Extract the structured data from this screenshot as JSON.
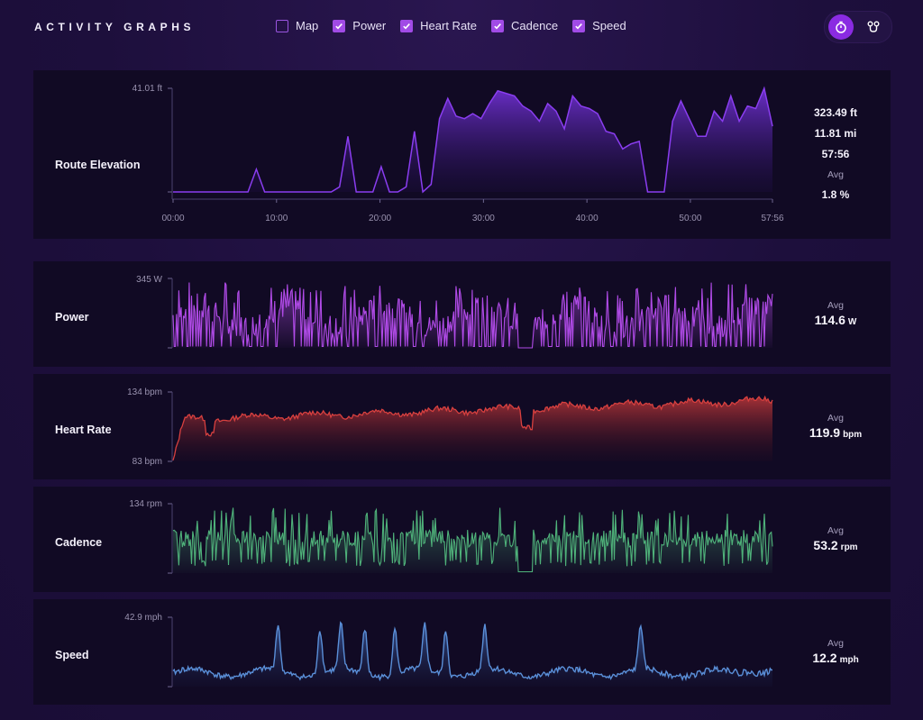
{
  "app": {
    "title": "ACTIVITY GRAPHS"
  },
  "toggles": [
    {
      "label": "Map",
      "checked": false
    },
    {
      "label": "Power",
      "checked": true
    },
    {
      "label": "Heart Rate",
      "checked": true
    },
    {
      "label": "Cadence",
      "checked": true
    },
    {
      "label": "Speed",
      "checked": true
    }
  ],
  "mode_buttons": [
    {
      "icon": "stopwatch-icon",
      "active": true
    },
    {
      "icon": "route-pins-icon",
      "active": false
    }
  ],
  "elevation": {
    "label": "Route Elevation",
    "y_max_label": "41.01 ft",
    "x_ticks": [
      "00:00",
      "10:00",
      "20:00",
      "30:00",
      "40:00",
      "50:00",
      "57:56"
    ],
    "stats": {
      "elevation_gain": "323.49 ft",
      "distance": "11.81 mi",
      "duration": "57:56",
      "avg_label": "Avg",
      "avg_grade": "1.8 %"
    },
    "color": "#8a3df0"
  },
  "power": {
    "label": "Power",
    "y_max_label": "345 W",
    "avg_label": "Avg",
    "avg_value": "114.6",
    "avg_unit": "W",
    "color": "#b14be8"
  },
  "heart_rate": {
    "label": "Heart Rate",
    "y_max_label": "134 bpm",
    "y_min_label": "83 bpm",
    "avg_label": "Avg",
    "avg_value": "119.9",
    "avg_unit": "bpm",
    "color": "#d8403f"
  },
  "cadence": {
    "label": "Cadence",
    "y_max_label": "134 rpm",
    "avg_label": "Avg",
    "avg_value": "53.2",
    "avg_unit": "rpm",
    "color": "#4fb27a"
  },
  "speed": {
    "label": "Speed",
    "y_max_label": "42.9 mph",
    "avg_label": "Avg",
    "avg_value": "12.2",
    "avg_unit": "mph",
    "color": "#5a8fd8"
  },
  "chart_data": [
    {
      "type": "area",
      "title": "Route Elevation",
      "xlabel": "",
      "ylabel": "",
      "x_ticks": [
        "00:00",
        "10:00",
        "20:00",
        "30:00",
        "40:00",
        "50:00",
        "57:56"
      ],
      "xlim_min": [
        0,
        57.93
      ],
      "ylim": [
        0,
        41.01
      ],
      "series": [
        {
          "values_sampled": [
            0,
            0,
            0,
            0,
            0,
            0,
            0,
            0,
            0,
            0,
            9,
            0,
            0,
            0,
            0,
            0,
            0,
            0,
            0,
            0,
            2,
            22,
            0,
            0,
            0,
            10,
            0,
            0,
            2,
            24,
            0,
            3,
            29,
            37,
            30,
            29,
            31,
            29,
            35,
            40,
            39,
            38,
            34,
            32,
            28,
            35,
            32,
            25,
            38,
            34,
            33,
            31,
            24,
            23,
            17,
            19,
            20,
            0,
            0,
            0,
            28,
            36,
            29,
            22,
            22,
            32,
            28,
            38,
            28,
            34,
            33,
            41,
            26
          ]
        }
      ]
    },
    {
      "type": "line",
      "title": "Power",
      "ylim": [
        0,
        345
      ],
      "series": [
        {
          "avg": 114.6
        }
      ]
    },
    {
      "type": "area",
      "title": "Heart Rate",
      "ylim": [
        83,
        134
      ],
      "series": [
        {
          "avg": 119.9
        }
      ]
    },
    {
      "type": "line",
      "title": "Cadence",
      "ylim": [
        0,
        134
      ],
      "series": [
        {
          "avg": 53.2
        }
      ]
    },
    {
      "type": "area",
      "title": "Speed",
      "ylim": [
        0,
        42.9
      ],
      "series": [
        {
          "avg": 12.2
        }
      ]
    }
  ]
}
